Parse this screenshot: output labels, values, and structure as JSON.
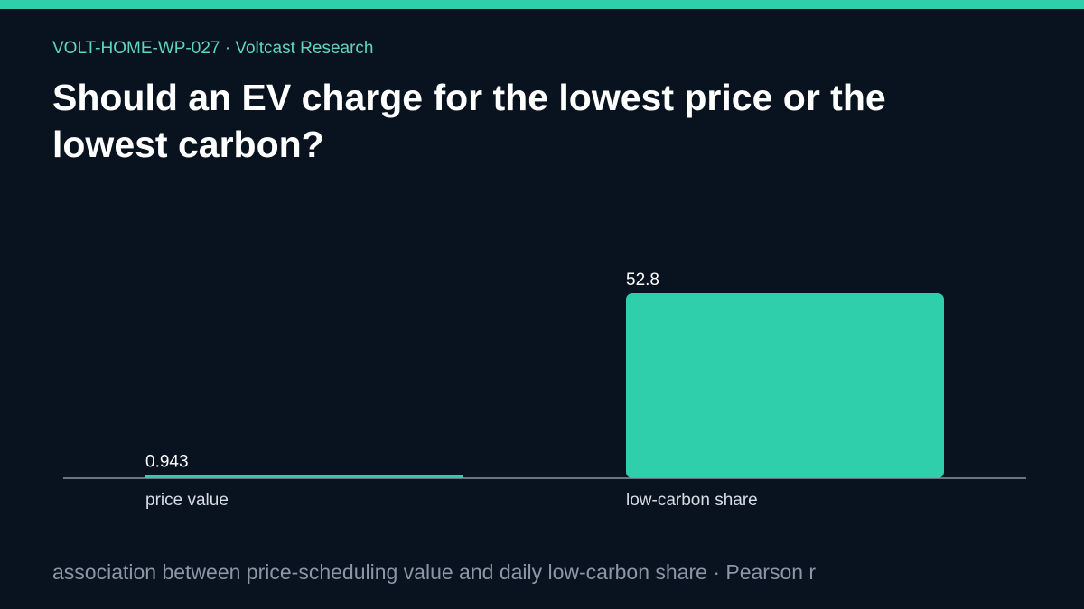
{
  "header": {
    "kicker": "VOLT-HOME-WP-027 · Voltcast Research",
    "title": "Should an EV charge for the lowest price or the lowest carbon?"
  },
  "footer": {
    "note": "association between price-scheduling value and daily low-carbon share · Pearson r"
  },
  "colors": {
    "accent": "#2ecfaa",
    "background": "#09131f",
    "axis": "#8b96a6"
  },
  "chart_data": {
    "type": "bar",
    "categories": [
      "price value",
      "low-carbon share"
    ],
    "values": [
      0.943,
      52.8
    ],
    "value_labels": [
      "0.943",
      "52.8"
    ],
    "title": "",
    "xlabel": "",
    "ylabel": "",
    "ylim": [
      0,
      52.8
    ],
    "grid": false
  }
}
